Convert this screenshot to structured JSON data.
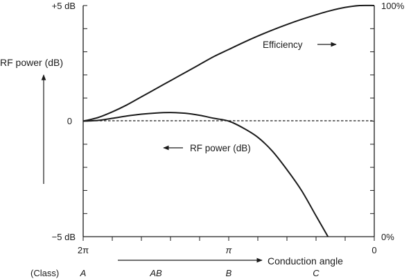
{
  "chart_data": {
    "type": "line",
    "left_axis": {
      "title": "RF power (dB)",
      "ylim": [
        -5,
        5
      ],
      "tick_labels": [
        {
          "value": 5,
          "label": "+5 dB"
        },
        {
          "value": 0,
          "label": "0"
        },
        {
          "value": -5,
          "label": "−5 dB"
        }
      ]
    },
    "right_axis": {
      "ylim": [
        0,
        100
      ],
      "tick_labels": [
        {
          "value": 100,
          "label": "100%"
        },
        {
          "value": 0,
          "label": "0%"
        }
      ]
    },
    "x_axis": {
      "title": "Conduction angle",
      "direction": "decreasing",
      "xlim": [
        6.2832,
        0
      ],
      "tick_labels": [
        {
          "value": 6.2832,
          "label": "2π"
        },
        {
          "value": 3.1416,
          "label": "π"
        },
        {
          "value": 0,
          "label": "0"
        }
      ]
    },
    "class_row": {
      "heading": "(Class)",
      "classes": [
        {
          "label": "A",
          "x": 6.2832
        },
        {
          "label": "AB",
          "x": 4.7124
        },
        {
          "label": "B",
          "x": 3.1416
        },
        {
          "label": "C",
          "x": 1.2566
        }
      ]
    },
    "reference_line": {
      "y": 0,
      "style": "dashed"
    },
    "series": [
      {
        "name": "Efficiency",
        "axis": "right",
        "x": [
          6.2832,
          5.969,
          5.6549,
          5.3407,
          5.0265,
          4.7124,
          4.3982,
          4.0841,
          3.7699,
          3.4558,
          3.1416,
          2.8274,
          2.5133,
          2.1991,
          1.885,
          1.5708,
          1.2566,
          0.9425,
          0.6283,
          0.3142,
          0
        ],
        "values": [
          50,
          51.5,
          54,
          57,
          60.5,
          64,
          67.5,
          71,
          74.5,
          78,
          81,
          84,
          86.8,
          89.4,
          91.8,
          94,
          96,
          97.8,
          99.2,
          100,
          100
        ]
      },
      {
        "name": "RF power (dB)",
        "axis": "left",
        "x": [
          6.2832,
          5.969,
          5.6549,
          5.3407,
          5.0265,
          4.7124,
          4.3982,
          4.0841,
          3.7699,
          3.4558,
          3.1416,
          2.8274,
          2.5133,
          2.1991,
          1.885,
          1.5708,
          1.2566,
          0.999
        ],
        "values": [
          0,
          0.03,
          0.12,
          0.22,
          0.3,
          0.35,
          0.37,
          0.34,
          0.25,
          0.12,
          0,
          -0.3,
          -0.7,
          -1.3,
          -2.1,
          -3.0,
          -4.1,
          -5.0
        ]
      }
    ],
    "annotations": [
      {
        "text": "Efficiency",
        "arrow": "right"
      },
      {
        "text": "RF power (dB)",
        "arrow": "left"
      }
    ]
  }
}
